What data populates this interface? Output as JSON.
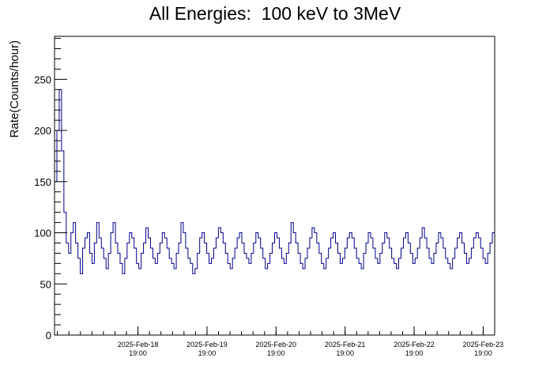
{
  "chart_data": {
    "type": "line",
    "title": "All Energies:  100 keV to 3MeV",
    "ylabel": "Rate(Counts/hour)",
    "xlabel": "",
    "ylim": [
      0,
      292
    ],
    "y_ticks": [
      0,
      50,
      100,
      150,
      200,
      250
    ],
    "x_start": "2025-02-17 14:00",
    "x_end": "2025-02-23 23:00",
    "x_tick_labels": [
      {
        "date": "2025-Feb-18",
        "time": "19:00",
        "t": "2025-02-18 19:00"
      },
      {
        "date": "2025-Feb-19",
        "time": "19:00",
        "t": "2025-02-19 19:00"
      },
      {
        "date": "2025-Feb-20",
        "time": "19:00",
        "t": "2025-02-20 19:00"
      },
      {
        "date": "2025-Feb-21",
        "time": "19:00",
        "t": "2025-02-21 19:00"
      },
      {
        "date": "2025-Feb-22",
        "time": "19:00",
        "t": "2025-02-22 19:00"
      },
      {
        "date": "2025-Feb-23",
        "time": "19:00",
        "t": "2025-02-23 19:00"
      }
    ],
    "grid": false,
    "legend": "none",
    "line_color": "#00008b",
    "series": [
      {
        "values": [
          150,
          200,
          240,
          180,
          120,
          90,
          80,
          100,
          110,
          90,
          75,
          60,
          85,
          95,
          100,
          80,
          70,
          90,
          110,
          95,
          85,
          75,
          65,
          80,
          100,
          110,
          90,
          80,
          70,
          60,
          75,
          90,
          100,
          95,
          85,
          70,
          65,
          80,
          90,
          105,
          95,
          85,
          75,
          70,
          80,
          90,
          100,
          95,
          85,
          75,
          70,
          65,
          80,
          90,
          110,
          100,
          85,
          75,
          70,
          60,
          65,
          80,
          95,
          100,
          90,
          80,
          70,
          75,
          85,
          95,
          105,
          100,
          90,
          80,
          70,
          65,
          75,
          85,
          95,
          100,
          90,
          80,
          75,
          70,
          80,
          90,
          100,
          95,
          85,
          75,
          65,
          70,
          80,
          90,
          100,
          95,
          85,
          75,
          70,
          80,
          90,
          110,
          100,
          90,
          80,
          70,
          65,
          75,
          85,
          95,
          105,
          100,
          90,
          80,
          70,
          65,
          75,
          85,
          95,
          100,
          90,
          80,
          70,
          75,
          85,
          95,
          100,
          95,
          85,
          75,
          70,
          65,
          80,
          90,
          100,
          95,
          85,
          75,
          70,
          80,
          90,
          100,
          95,
          85,
          75,
          70,
          65,
          75,
          85,
          95,
          100,
          90,
          80,
          70,
          75,
          85,
          95,
          105,
          95,
          85,
          75,
          70,
          80,
          90,
          100,
          95,
          85,
          75,
          70,
          65,
          75,
          85,
          95,
          100,
          90,
          80,
          70,
          75,
          85,
          95,
          100,
          95,
          85,
          75,
          70,
          80,
          90,
          100
        ]
      }
    ]
  }
}
